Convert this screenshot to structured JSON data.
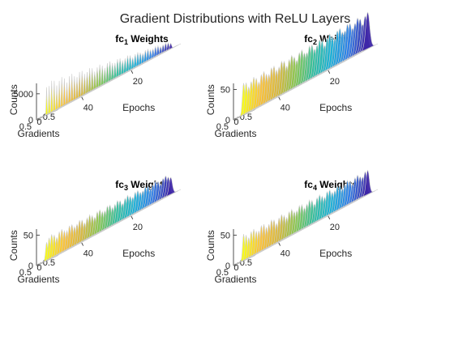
{
  "chart_data": {
    "type": "area",
    "title": "Gradient Distributions with ReLU Layers",
    "colormap": [
      "#3e26a8",
      "#2f7ee8",
      "#1ab0d8",
      "#2fbf9e",
      "#85c74f",
      "#d7b73a",
      "#fbc032",
      "#f9fb0e"
    ],
    "slice_edge_color": "#cccccc",
    "panels": [
      {
        "title_main": "fc",
        "title_sub": "1",
        "title_rest": " Weights",
        "xlabel": "Gradients",
        "ylabel": "Epochs",
        "zlabel": "Counts",
        "gradient_ticks": [
          "0.5",
          "0",
          "-0.5"
        ],
        "epoch_ticks": [
          "40",
          "20"
        ],
        "count_ticks": [
          "0",
          "5000"
        ],
        "zmax": 7000,
        "epochs": 50,
        "peak_counts_start": 1200,
        "peak_counts_end": 5500,
        "spread_start": 0.04,
        "spread_end": 0.02
      },
      {
        "title_main": "fc",
        "title_sub": "2",
        "title_rest": " Weights",
        "xlabel": "Gradients",
        "ylabel": "Epochs",
        "zlabel": "Counts",
        "gradient_ticks": [
          "0.5",
          "0",
          "-0.5"
        ],
        "epoch_ticks": [
          "40",
          "20"
        ],
        "count_ticks": [
          "0",
          "50"
        ],
        "zmax": 60,
        "epochs": 50,
        "peak_counts_start": 52,
        "peak_counts_end": 46,
        "spread_start": 0.1,
        "spread_end": 0.06
      },
      {
        "title_main": "fc",
        "title_sub": "3",
        "title_rest": " Weights",
        "xlabel": "Gradients",
        "ylabel": "Epochs",
        "zlabel": "Counts",
        "gradient_ticks": [
          "0.5",
          "0",
          "-0.5"
        ],
        "epoch_ticks": [
          "40",
          "20"
        ],
        "count_ticks": [
          "0",
          "50"
        ],
        "zmax": 60,
        "epochs": 50,
        "peak_counts_start": 30,
        "peak_counts_end": 34,
        "spread_start": 0.08,
        "spread_end": 0.05
      },
      {
        "title_main": "fc",
        "title_sub": "4",
        "title_rest": " Weights",
        "xlabel": "Gradients",
        "ylabel": "Epochs",
        "zlabel": "Counts",
        "gradient_ticks": [
          "0.5",
          "0",
          "-0.5"
        ],
        "epoch_ticks": [
          "40",
          "20"
        ],
        "count_ticks": [
          "0",
          "50"
        ],
        "zmax": 60,
        "epochs": 50,
        "peak_counts_start": 35,
        "peak_counts_end": 38,
        "spread_start": 0.08,
        "spread_end": 0.05
      }
    ]
  }
}
